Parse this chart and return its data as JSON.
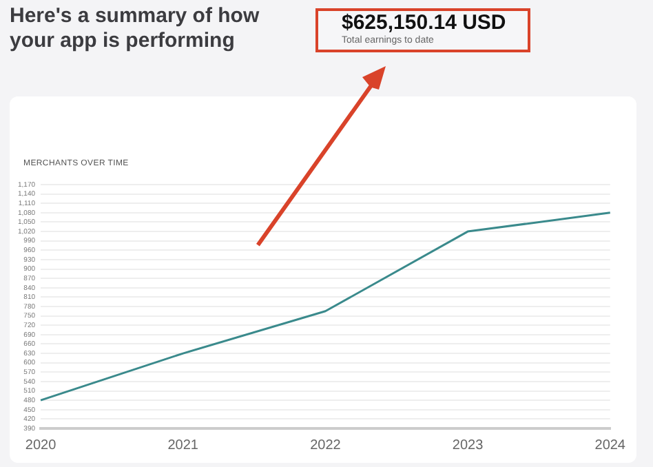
{
  "chart_data": {
    "type": "line",
    "title": "MERCHANTS OVER TIME",
    "annotations": [
      "Here's a summary of how your app is performing",
      "$625,150.14 USD",
      "Total earnings to date"
    ],
    "categories": [
      "2020",
      "2021",
      "2022",
      "2023",
      "2024"
    ],
    "series": [
      {
        "color": "#3a8a8c",
        "values": [
          480,
          630,
          765,
          1020,
          1080
        ]
      }
    ],
    "ylim": [
      390,
      1170
    ],
    "yticks": [
      390,
      420,
      450,
      480,
      510,
      540,
      570,
      600,
      630,
      660,
      690,
      720,
      750,
      780,
      810,
      840,
      870,
      900,
      930,
      960,
      990,
      {
        "value": 1020,
        "label": "1,020"
      },
      {
        "value": 1050,
        "label": "1,050"
      },
      {
        "value": 1080,
        "label": "1,080"
      },
      {
        "value": 1110,
        "label": "1,110"
      },
      {
        "value": 1140,
        "label": "1,140"
      },
      {
        "value": 1170,
        "label": "1,170"
      }
    ],
    "grid": "y",
    "legend": false,
    "marker": "none",
    "line_style": "solid"
  }
}
